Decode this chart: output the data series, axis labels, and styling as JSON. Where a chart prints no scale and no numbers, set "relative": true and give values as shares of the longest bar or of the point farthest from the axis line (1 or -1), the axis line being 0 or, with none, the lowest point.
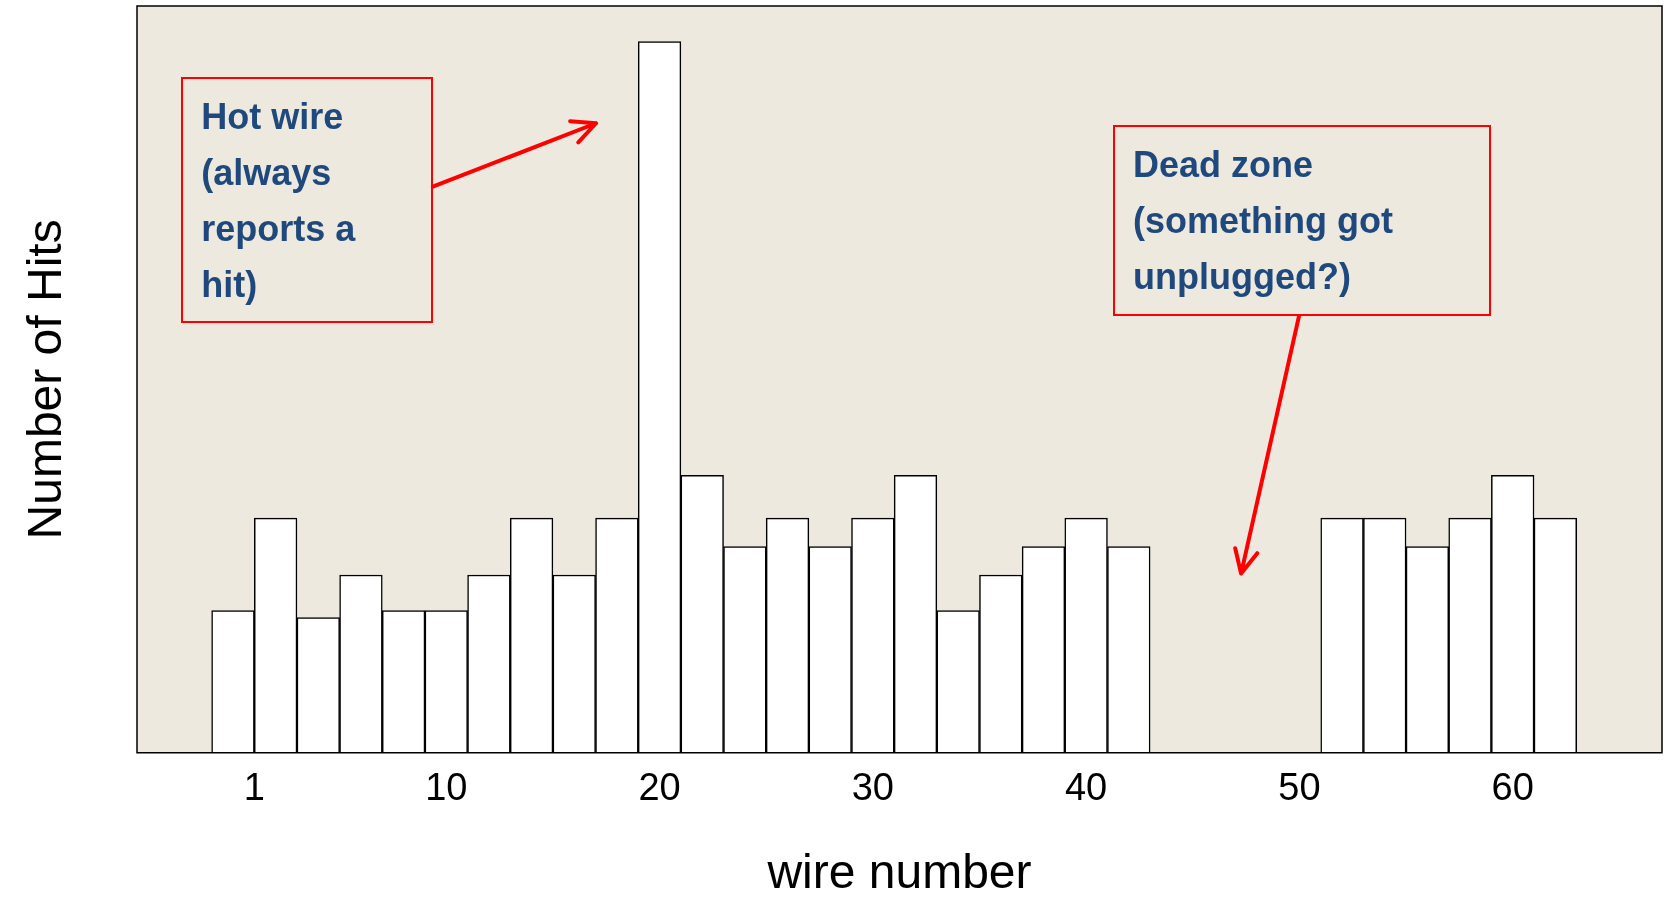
{
  "chart_data": {
    "type": "bar",
    "xlabel": "wire number",
    "ylabel": "Number of Hits",
    "relative": true,
    "x": [
      0,
      2,
      4,
      6,
      8,
      10,
      12,
      14,
      16,
      18,
      20,
      22,
      24,
      26,
      28,
      30,
      32,
      34,
      36,
      38,
      40,
      42,
      44,
      46,
      48,
      50,
      52,
      54,
      56,
      58,
      60,
      62
    ],
    "values": [
      0.2,
      0.33,
      0.19,
      0.25,
      0.2,
      0.2,
      0.25,
      0.33,
      0.25,
      0.33,
      1,
      0.39,
      0.29,
      0.33,
      0.29,
      0.33,
      0.39,
      0.2,
      0.25,
      0.29,
      0.33,
      0.29,
      null,
      null,
      null,
      null,
      0.33,
      0.33,
      0.29,
      0.33,
      0.39,
      0.33
    ],
    "color": "#ffffff",
    "xlim": [
      -4.5,
      67
    ],
    "xticks": [
      1,
      10,
      20,
      30,
      40,
      50,
      60
    ],
    "grid": false,
    "legend": false,
    "annotations": [
      "Hot wire (always reports a hit)",
      "Dead zone (something got unplugged?)"
    ]
  }
}
